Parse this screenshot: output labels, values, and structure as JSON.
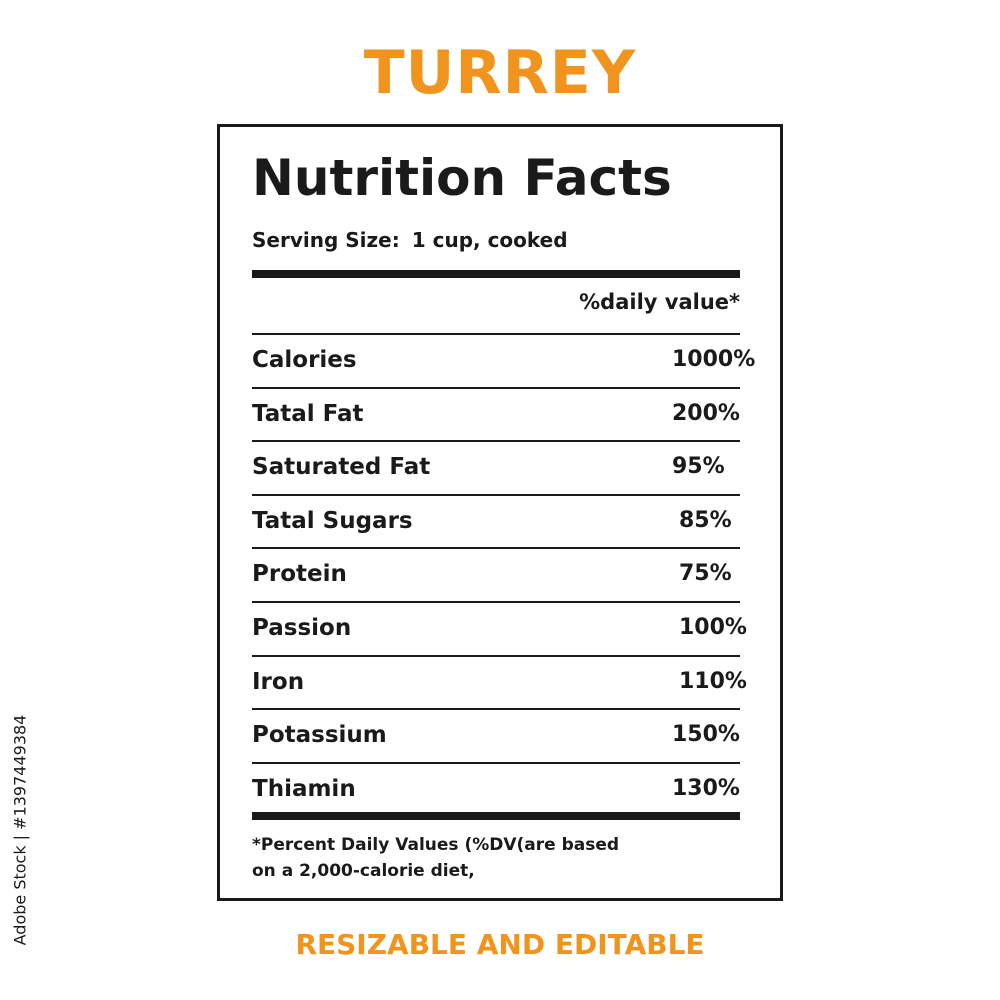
{
  "title": "TURREY",
  "label": {
    "heading": "Nutrition Facts",
    "serving_label": "Serving Size:",
    "serving_value": "1 cup, cooked",
    "dv_header": "%daily value*",
    "rows": [
      {
        "name": "Calories",
        "pct": "1000%"
      },
      {
        "name": "Tatal Fat",
        "pct": "200%"
      },
      {
        "name": "Saturated Fat",
        "pct": "95%"
      },
      {
        "name": "Tatal Sugars",
        "pct": "85%"
      },
      {
        "name": "Protein",
        "pct": "75%"
      },
      {
        "name": "Passion",
        "pct": "100%"
      },
      {
        "name": "Iron",
        "pct": "110%"
      },
      {
        "name": "Potassium",
        "pct": "150%"
      },
      {
        "name": "Thiamin",
        "pct": "130%"
      }
    ],
    "footnote_line1": "*Percent Daily Values (%DV(are  based",
    "footnote_line2": "on a 2,000-calorie diet,"
  },
  "footer": "RESIZABLE AND EDITABLE",
  "stock_id": "Adobe Stock | #1397449384",
  "colors": {
    "accent": "#f0941e",
    "ink": "#1a1a1a",
    "background": "#ffffff"
  }
}
